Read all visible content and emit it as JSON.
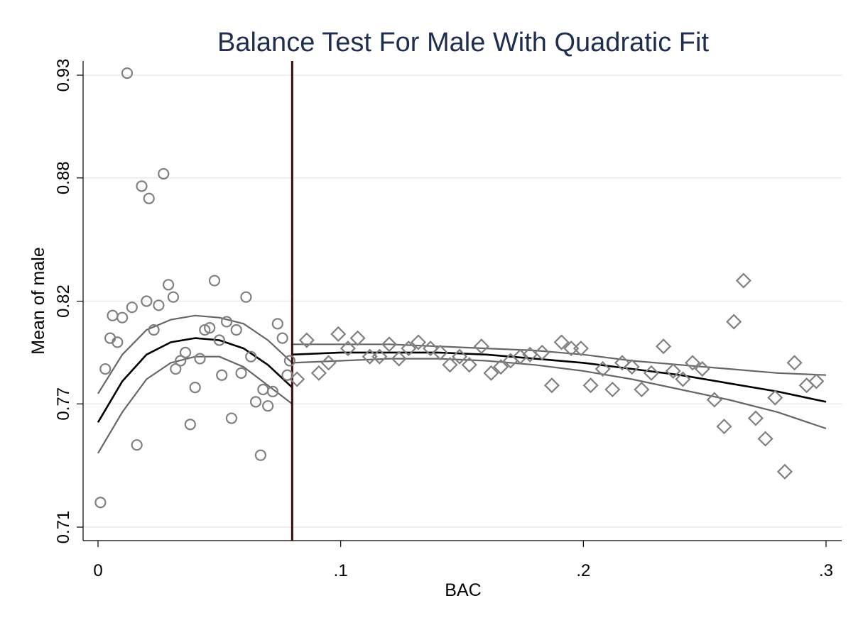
{
  "chart_data": {
    "type": "scatter",
    "title": "Balance Test For Male With Quadratic Fit",
    "xlabel": "BAC",
    "ylabel": "Mean of male",
    "xlim": [
      0,
      0.3
    ],
    "ylim": [
      0.71,
      0.93
    ],
    "x_ticks": [
      {
        "value": 0,
        "label": "0"
      },
      {
        "value": 0.1,
        "label": ".1"
      },
      {
        "value": 0.2,
        "label": ".2"
      },
      {
        "value": 0.3,
        "label": ".3"
      }
    ],
    "y_ticks": [
      {
        "value": 0.71,
        "label": "0.71"
      },
      {
        "value": 0.77,
        "label": "0.77"
      },
      {
        "value": 0.82,
        "label": "0.82"
      },
      {
        "value": 0.88,
        "label": "0.88"
      },
      {
        "value": 0.93,
        "label": "0.93"
      }
    ],
    "grid": true,
    "cutoff_x": 0.08,
    "colors": {
      "title": "#1f2d4e",
      "markers": "#808080",
      "fit": "#000000",
      "ci": "#666666",
      "cutoff": "#3a0a0a",
      "grid": "#e3ecef"
    },
    "series": [
      {
        "marker": "circle",
        "points": [
          [
            0.001,
            0.722
          ],
          [
            0.003,
            0.787
          ],
          [
            0.005,
            0.802
          ],
          [
            0.006,
            0.813
          ],
          [
            0.008,
            0.8
          ],
          [
            0.01,
            0.812
          ],
          [
            0.012,
            0.931
          ],
          [
            0.014,
            0.817
          ],
          [
            0.016,
            0.75
          ],
          [
            0.018,
            0.876
          ],
          [
            0.02,
            0.82
          ],
          [
            0.021,
            0.87
          ],
          [
            0.023,
            0.806
          ],
          [
            0.025,
            0.818
          ],
          [
            0.027,
            0.882
          ],
          [
            0.029,
            0.828
          ],
          [
            0.031,
            0.822
          ],
          [
            0.032,
            0.787
          ],
          [
            0.034,
            0.791
          ],
          [
            0.036,
            0.795
          ],
          [
            0.038,
            0.76
          ],
          [
            0.04,
            0.778
          ],
          [
            0.042,
            0.792
          ],
          [
            0.044,
            0.806
          ],
          [
            0.046,
            0.807
          ],
          [
            0.048,
            0.83
          ],
          [
            0.05,
            0.801
          ],
          [
            0.051,
            0.784
          ],
          [
            0.053,
            0.81
          ],
          [
            0.055,
            0.763
          ],
          [
            0.057,
            0.806
          ],
          [
            0.059,
            0.785
          ],
          [
            0.061,
            0.822
          ],
          [
            0.063,
            0.793
          ],
          [
            0.065,
            0.771
          ],
          [
            0.067,
            0.745
          ],
          [
            0.068,
            0.777
          ],
          [
            0.07,
            0.769
          ],
          [
            0.072,
            0.776
          ],
          [
            0.074,
            0.809
          ],
          [
            0.076,
            0.802
          ],
          [
            0.078,
            0.784
          ],
          [
            0.079,
            0.791
          ]
        ]
      },
      {
        "marker": "diamond",
        "points": [
          [
            0.082,
            0.782
          ],
          [
            0.086,
            0.801
          ],
          [
            0.091,
            0.785
          ],
          [
            0.095,
            0.79
          ],
          [
            0.099,
            0.804
          ],
          [
            0.103,
            0.797
          ],
          [
            0.107,
            0.802
          ],
          [
            0.112,
            0.793
          ],
          [
            0.116,
            0.793
          ],
          [
            0.12,
            0.799
          ],
          [
            0.124,
            0.792
          ],
          [
            0.128,
            0.797
          ],
          [
            0.132,
            0.8
          ],
          [
            0.137,
            0.797
          ],
          [
            0.141,
            0.795
          ],
          [
            0.145,
            0.789
          ],
          [
            0.149,
            0.793
          ],
          [
            0.153,
            0.789
          ],
          [
            0.158,
            0.798
          ],
          [
            0.162,
            0.785
          ],
          [
            0.166,
            0.788
          ],
          [
            0.17,
            0.791
          ],
          [
            0.174,
            0.793
          ],
          [
            0.178,
            0.794
          ],
          [
            0.183,
            0.795
          ],
          [
            0.187,
            0.779
          ],
          [
            0.191,
            0.8
          ],
          [
            0.195,
            0.797
          ],
          [
            0.199,
            0.797
          ],
          [
            0.203,
            0.779
          ],
          [
            0.208,
            0.787
          ],
          [
            0.212,
            0.777
          ],
          [
            0.216,
            0.79
          ],
          [
            0.22,
            0.788
          ],
          [
            0.224,
            0.777
          ],
          [
            0.228,
            0.785
          ],
          [
            0.233,
            0.798
          ],
          [
            0.237,
            0.786
          ],
          [
            0.241,
            0.782
          ],
          [
            0.245,
            0.79
          ],
          [
            0.249,
            0.787
          ],
          [
            0.254,
            0.772
          ],
          [
            0.258,
            0.759
          ],
          [
            0.262,
            0.81
          ],
          [
            0.266,
            0.83
          ],
          [
            0.271,
            0.763
          ],
          [
            0.275,
            0.753
          ],
          [
            0.279,
            0.773
          ],
          [
            0.283,
            0.737
          ],
          [
            0.287,
            0.79
          ],
          [
            0.292,
            0.779
          ],
          [
            0.296,
            0.781
          ]
        ]
      }
    ],
    "fits": [
      {
        "x": [
          0.0,
          0.01,
          0.02,
          0.03,
          0.04,
          0.05,
          0.06,
          0.07,
          0.08
        ],
        "fit": [
          0.761,
          0.781,
          0.794,
          0.8,
          0.802,
          0.801,
          0.797,
          0.789,
          0.778
        ],
        "ci_upper": [
          0.775,
          0.794,
          0.806,
          0.811,
          0.813,
          0.812,
          0.809,
          0.801,
          0.79
        ],
        "ci_lower": [
          0.746,
          0.766,
          0.782,
          0.79,
          0.793,
          0.793,
          0.788,
          0.779,
          0.77
        ]
      },
      {
        "x": [
          0.08,
          0.1,
          0.12,
          0.14,
          0.16,
          0.18,
          0.2,
          0.22,
          0.24,
          0.26,
          0.28,
          0.3
        ],
        "fit": [
          0.794,
          0.795,
          0.795,
          0.795,
          0.794,
          0.792,
          0.79,
          0.787,
          0.784,
          0.78,
          0.776,
          0.771
        ],
        "ci_upper": [
          0.799,
          0.799,
          0.799,
          0.798,
          0.797,
          0.796,
          0.794,
          0.791,
          0.789,
          0.787,
          0.785,
          0.784
        ],
        "ci_lower": [
          0.79,
          0.791,
          0.792,
          0.792,
          0.791,
          0.789,
          0.786,
          0.782,
          0.777,
          0.772,
          0.766,
          0.758
        ]
      }
    ]
  }
}
